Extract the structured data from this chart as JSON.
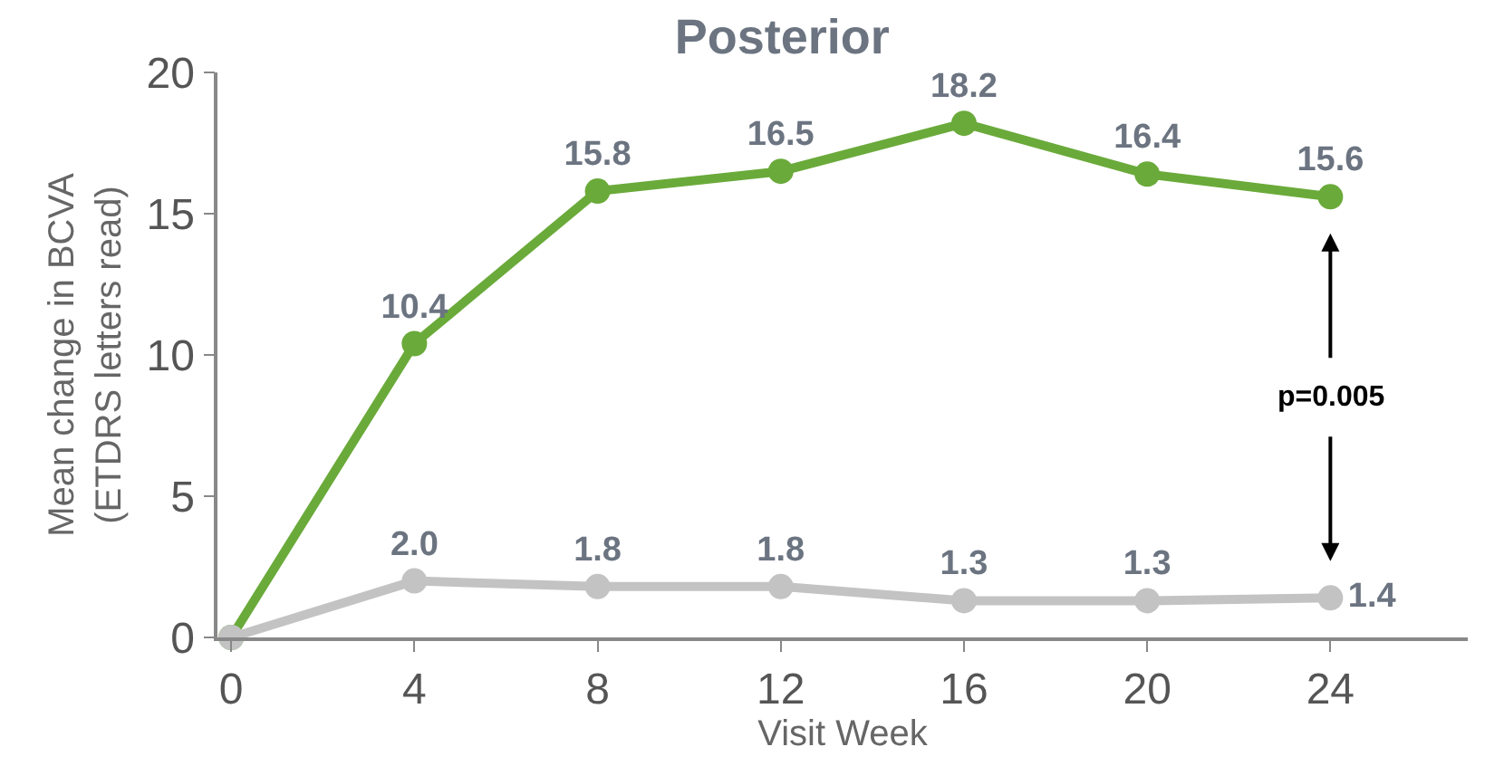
{
  "chart_data": {
    "type": "line",
    "title": "Posterior",
    "xlabel": "Visit Week",
    "ylabel": "Mean change in BCVA\n(ETDRS letters read)",
    "x": [
      0,
      4,
      8,
      12,
      16,
      20,
      24
    ],
    "series": [
      {
        "color": "#6aaa3a",
        "values": [
          0,
          10.4,
          15.8,
          16.5,
          18.2,
          16.4,
          15.6
        ],
        "value_labels": [
          null,
          "10.4",
          "15.8",
          "16.5",
          "18.2",
          "16.4",
          "15.6"
        ]
      },
      {
        "color": "#c3c3c3",
        "values": [
          0,
          2.0,
          1.8,
          1.8,
          1.3,
          1.3,
          1.4
        ],
        "value_labels": [
          null,
          "2.0",
          "1.8",
          "1.8",
          "1.3",
          "1.3",
          "1.4"
        ]
      }
    ],
    "annotations": [
      "p=0.005"
    ],
    "xlim": [
      -0.3,
      27
    ],
    "xticks": [
      0,
      4,
      8,
      12,
      16,
      20,
      24
    ],
    "ylim": [
      0,
      20
    ],
    "yticks": [
      0,
      5,
      10,
      15,
      20
    ],
    "legend": false,
    "marker": "circle",
    "line_style": "solid"
  }
}
